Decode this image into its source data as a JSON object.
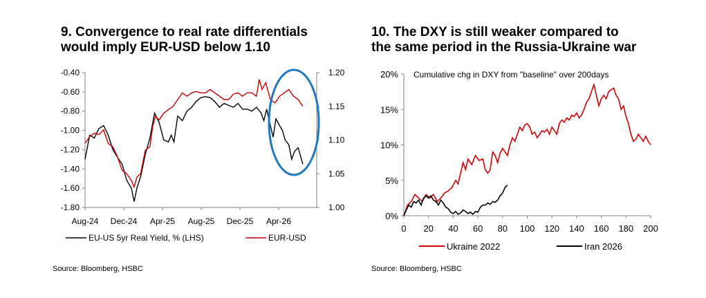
{
  "panels": [
    {
      "title_line1": "9. Convergence to real rate differentials",
      "title_line2": "would imply EUR-USD below 1.10",
      "source": "Source: Bloomberg, HSBC"
    },
    {
      "title_line1": "10. The DXY is still weaker compared to",
      "title_line2": "the same period in the Russia-Ukraine war",
      "source": "Source: Bloomberg, HSBC"
    }
  ],
  "colors": {
    "red": "#cc0000",
    "black": "#000000",
    "circle": "#1f77c0",
    "axis": "#808080"
  },
  "chart_data": [
    {
      "type": "line",
      "title": "9. Convergence to real rate differentials would imply EUR-USD below 1.10",
      "x_ticks": [
        "Aug-24",
        "Dec-24",
        "Apr-25",
        "Aug-25",
        "Dec-25",
        "Apr-26"
      ],
      "x_range": [
        0,
        25
      ],
      "y_left": {
        "ticks": [
          "-0.40",
          "-0.60",
          "-0.80",
          "-1.00",
          "-1.20",
          "-1.40",
          "-1.60",
          "-1.80"
        ],
        "range": [
          -1.8,
          -0.4
        ]
      },
      "y_right": {
        "ticks": [
          "1.20",
          "1.15",
          "1.10",
          "1.05",
          "1.00"
        ],
        "range": [
          1.0,
          1.2
        ]
      },
      "grid": false,
      "legend_position": "bottom",
      "annotation": "blue ellipse highlighting the most recent months",
      "series": [
        {
          "name": "EU-US 5yr Real Yield, % (LHS)",
          "color": "#000000",
          "axis": "left",
          "points": [
            [
              0,
              -1.3
            ],
            [
              0.5,
              -1.05
            ],
            [
              1.0,
              -1.08
            ],
            [
              1.5,
              -0.98
            ],
            [
              2.0,
              -0.95
            ],
            [
              2.5,
              -1.05
            ],
            [
              3.0,
              -1.2
            ],
            [
              3.5,
              -1.28
            ],
            [
              4.0,
              -1.35
            ],
            [
              4.5,
              -1.52
            ],
            [
              5.0,
              -1.6
            ],
            [
              5.3,
              -1.74
            ],
            [
              5.6,
              -1.6
            ],
            [
              6.0,
              -1.48
            ],
            [
              6.5,
              -1.25
            ],
            [
              7.0,
              -1.08
            ],
            [
              7.5,
              -0.82
            ],
            [
              8.0,
              -0.92
            ],
            [
              8.5,
              -1.1
            ],
            [
              9.0,
              -1.12
            ],
            [
              9.3,
              -1.05
            ],
            [
              9.6,
              -1.12
            ],
            [
              10.0,
              -0.85
            ],
            [
              10.5,
              -0.9
            ],
            [
              11.0,
              -0.8
            ],
            [
              11.5,
              -0.76
            ],
            [
              12.0,
              -0.7
            ],
            [
              12.5,
              -0.66
            ],
            [
              13.0,
              -0.65
            ],
            [
              13.5,
              -0.66
            ],
            [
              14.0,
              -0.7
            ],
            [
              14.5,
              -0.76
            ],
            [
              15.0,
              -0.72
            ],
            [
              15.5,
              -0.74
            ],
            [
              16.0,
              -0.76
            ],
            [
              16.5,
              -0.72
            ],
            [
              17.0,
              -0.78
            ],
            [
              17.5,
              -0.78
            ],
            [
              18.0,
              -0.8
            ],
            [
              18.5,
              -0.76
            ],
            [
              19.0,
              -0.82
            ],
            [
              19.3,
              -0.9
            ],
            [
              19.6,
              -0.78
            ],
            [
              20.0,
              -0.95
            ],
            [
              20.3,
              -1.07
            ],
            [
              20.6,
              -0.88
            ],
            [
              21.0,
              -0.95
            ],
            [
              21.3,
              -1.0
            ],
            [
              21.6,
              -1.1
            ],
            [
              22.0,
              -1.15
            ],
            [
              22.3,
              -1.3
            ],
            [
              22.6,
              -1.22
            ],
            [
              23.0,
              -1.18
            ],
            [
              23.5,
              -1.35
            ]
          ]
        },
        {
          "name": "EUR-USD",
          "color": "#cc0000",
          "axis": "right",
          "points": [
            [
              0,
              1.095
            ],
            [
              0.5,
              1.105
            ],
            [
              1.0,
              1.11
            ],
            [
              1.5,
              1.108
            ],
            [
              2.0,
              1.115
            ],
            [
              2.5,
              1.095
            ],
            [
              3.0,
              1.09
            ],
            [
              3.5,
              1.075
            ],
            [
              4.0,
              1.055
            ],
            [
              4.5,
              1.05
            ],
            [
              5.0,
              1.04
            ],
            [
              5.3,
              1.03
            ],
            [
              5.6,
              1.045
            ],
            [
              6.0,
              1.05
            ],
            [
              6.5,
              1.085
            ],
            [
              7.0,
              1.09
            ],
            [
              7.3,
              1.12
            ],
            [
              7.6,
              1.135
            ],
            [
              8.0,
              1.13
            ],
            [
              8.5,
              1.14
            ],
            [
              9.0,
              1.145
            ],
            [
              9.5,
              1.15
            ],
            [
              10.0,
              1.16
            ],
            [
              10.5,
              1.17
            ],
            [
              11.0,
              1.165
            ],
            [
              11.5,
              1.17
            ],
            [
              12.0,
              1.172
            ],
            [
              12.5,
              1.17
            ],
            [
              13.0,
              1.17
            ],
            [
              13.5,
              1.175
            ],
            [
              14.0,
              1.17
            ],
            [
              14.5,
              1.165
            ],
            [
              15.0,
              1.16
            ],
            [
              15.5,
              1.16
            ],
            [
              16.0,
              1.168
            ],
            [
              16.5,
              1.17
            ],
            [
              17.0,
              1.165
            ],
            [
              17.5,
              1.17
            ],
            [
              18.0,
              1.17
            ],
            [
              18.5,
              1.165
            ],
            [
              18.8,
              1.19
            ],
            [
              19.1,
              1.175
            ],
            [
              19.5,
              1.185
            ],
            [
              20.0,
              1.16
            ],
            [
              20.5,
              1.155
            ],
            [
              21.0,
              1.165
            ],
            [
              21.5,
              1.17
            ],
            [
              22.0,
              1.175
            ],
            [
              22.5,
              1.165
            ],
            [
              23.0,
              1.16
            ],
            [
              23.5,
              1.15
            ]
          ]
        }
      ]
    },
    {
      "type": "line",
      "title": "10. The DXY is still weaker compared to the same period in the Russia-Ukraine war",
      "annotation": "Cumulative chg in DXY from \"baseline\" over 200days",
      "x_ticks": [
        "0",
        "20",
        "40",
        "60",
        "80",
        "100",
        "120",
        "140",
        "160",
        "180",
        "200"
      ],
      "x_range": [
        0,
        200
      ],
      "y_ticks": [
        "20%",
        "15%",
        "10%",
        "5%",
        "0%"
      ],
      "y_range": [
        0,
        20
      ],
      "grid": false,
      "legend_position": "bottom",
      "series": [
        {
          "name": "Ukraine 2022",
          "color": "#cc0000",
          "points": [
            [
              0,
              0
            ],
            [
              3,
              1.5
            ],
            [
              6,
              2.0
            ],
            [
              9,
              3.0
            ],
            [
              12,
              2.5
            ],
            [
              15,
              2.0
            ],
            [
              18,
              3.0
            ],
            [
              21,
              2.5
            ],
            [
              24,
              3.0
            ],
            [
              27,
              2.0
            ],
            [
              30,
              2.5
            ],
            [
              33,
              3.2
            ],
            [
              36,
              3.5
            ],
            [
              39,
              4.0
            ],
            [
              42,
              5.0
            ],
            [
              44,
              4.5
            ],
            [
              46,
              6.0
            ],
            [
              48,
              7.5
            ],
            [
              50,
              6.5
            ],
            [
              52,
              8.0
            ],
            [
              55,
              7.2
            ],
            [
              58,
              8.5
            ],
            [
              61,
              7.8
            ],
            [
              64,
              8.0
            ],
            [
              66,
              6.5
            ],
            [
              68,
              6.0
            ],
            [
              70,
              6.5
            ],
            [
              72,
              9.0
            ],
            [
              74,
              8.5
            ],
            [
              76,
              7.5
            ],
            [
              78,
              8.8
            ],
            [
              80,
              9.5
            ],
            [
              82,
              9.0
            ],
            [
              84,
              8.5
            ],
            [
              86,
              10.0
            ],
            [
              88,
              11.0
            ],
            [
              90,
              10.5
            ],
            [
              92,
              11.5
            ],
            [
              94,
              12.5
            ],
            [
              96,
              12.0
            ],
            [
              98,
              12.8
            ],
            [
              100,
              13.0
            ],
            [
              102,
              12.5
            ],
            [
              104,
              11.5
            ],
            [
              106,
              11.8
            ],
            [
              108,
              11.0
            ],
            [
              110,
              11.5
            ],
            [
              112,
              12.0
            ],
            [
              114,
              11.8
            ],
            [
              116,
              12.2
            ],
            [
              118,
              11.5
            ],
            [
              120,
              12.5
            ],
            [
              122,
              12.0
            ],
            [
              124,
              11.5
            ],
            [
              126,
              13.0
            ],
            [
              128,
              13.5
            ],
            [
              130,
              13.2
            ],
            [
              132,
              13.8
            ],
            [
              134,
              13.5
            ],
            [
              136,
              14.2
            ],
            [
              138,
              14.0
            ],
            [
              140,
              14.5
            ],
            [
              142,
              13.8
            ],
            [
              144,
              14.2
            ],
            [
              146,
              15.0
            ],
            [
              148,
              16.0
            ],
            [
              150,
              16.5
            ],
            [
              152,
              17.5
            ],
            [
              154,
              18.5
            ],
            [
              156,
              17.0
            ],
            [
              158,
              15.5
            ],
            [
              160,
              16.5
            ],
            [
              162,
              17.0
            ],
            [
              164,
              16.5
            ],
            [
              166,
              17.5
            ],
            [
              168,
              17.8
            ],
            [
              170,
              18.0
            ],
            [
              172,
              17.0
            ],
            [
              174,
              16.5
            ],
            [
              176,
              15.0
            ],
            [
              178,
              15.5
            ],
            [
              180,
              14.0
            ],
            [
              182,
              13.0
            ],
            [
              184,
              11.5
            ],
            [
              186,
              10.5
            ],
            [
              188,
              10.8
            ],
            [
              190,
              11.5
            ],
            [
              192,
              11.0
            ],
            [
              194,
              10.5
            ],
            [
              196,
              11.2
            ],
            [
              198,
              10.5
            ],
            [
              200,
              10.0
            ]
          ]
        },
        {
          "name": "Iran 2026",
          "color": "#000000",
          "points": [
            [
              0,
              0
            ],
            [
              2,
              0.8
            ],
            [
              4,
              1.5
            ],
            [
              6,
              1.2
            ],
            [
              8,
              2.0
            ],
            [
              10,
              1.8
            ],
            [
              12,
              2.2
            ],
            [
              14,
              1.5
            ],
            [
              16,
              2.5
            ],
            [
              18,
              2.8
            ],
            [
              20,
              2.5
            ],
            [
              22,
              2.8
            ],
            [
              24,
              2.2
            ],
            [
              26,
              2.0
            ],
            [
              28,
              1.5
            ],
            [
              30,
              2.2
            ],
            [
              32,
              1.8
            ],
            [
              34,
              1.2
            ],
            [
              36,
              1.0
            ],
            [
              38,
              0.5
            ],
            [
              40,
              0.3
            ],
            [
              42,
              0.6
            ],
            [
              44,
              0.2
            ],
            [
              46,
              0.4
            ],
            [
              48,
              0.8
            ],
            [
              50,
              0.6
            ],
            [
              52,
              0.3
            ],
            [
              54,
              0.5
            ],
            [
              56,
              0.2
            ],
            [
              58,
              0.6
            ],
            [
              60,
              0.5
            ],
            [
              62,
              1.2
            ],
            [
              64,
              1.5
            ],
            [
              66,
              1.5
            ],
            [
              68,
              1.8
            ],
            [
              70,
              1.6
            ],
            [
              72,
              2.0
            ],
            [
              74,
              1.9
            ],
            [
              76,
              2.2
            ],
            [
              78,
              2.8
            ],
            [
              80,
              3.2
            ],
            [
              82,
              4.0
            ],
            [
              84,
              4.3
            ]
          ]
        }
      ]
    }
  ]
}
